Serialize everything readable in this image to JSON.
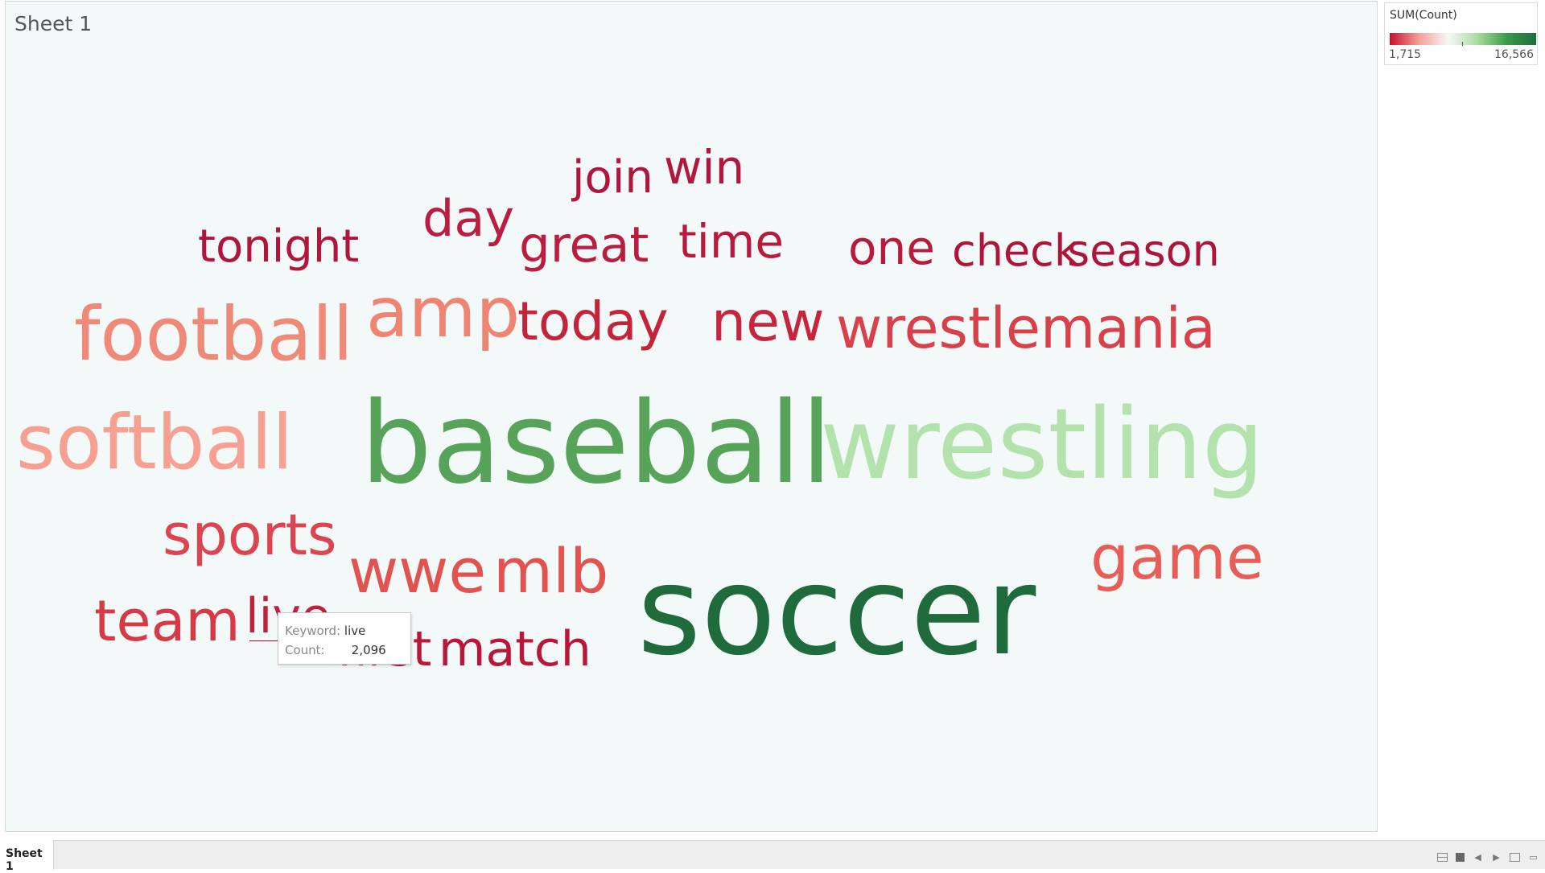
{
  "sheet": {
    "title": "Sheet 1",
    "tab_label": "Sheet 1"
  },
  "legend": {
    "title": "SUM(Count)",
    "min_label": "1,715",
    "max_label": "16,566",
    "colors": [
      "#c8102e",
      "#f3a09a",
      "#f7f7f7",
      "#a8dca0",
      "#3a9a4a",
      "#1e6e3e"
    ]
  },
  "tooltip": {
    "keyword_label": "Keyword:",
    "keyword_value": "live",
    "count_label": "Count:",
    "count_value": "2,096"
  },
  "chart_data": {
    "type": "word cloud",
    "title": "Sheet 1",
    "color_measure": "SUM(Count)",
    "color_range": [
      1715,
      16566
    ],
    "words": [
      {
        "text": "soccer",
        "count": 16566,
        "color": "#1f6b3b"
      },
      {
        "text": "baseball",
        "count": 12500,
        "color": "#57a359"
      },
      {
        "text": "wrestling",
        "count": 9500,
        "color": "#b3e2ac"
      },
      {
        "text": "softball",
        "count": 5600,
        "color": "#f6a091"
      },
      {
        "text": "football",
        "count": 5300,
        "color": "#f08a78"
      },
      {
        "text": "amp",
        "count": 4800,
        "color": "#ef8473"
      },
      {
        "text": "game",
        "count": 4200,
        "color": "#e65e57"
      },
      {
        "text": "wwe",
        "count": 4000,
        "color": "#e2534f"
      },
      {
        "text": "mlb",
        "count": 3950,
        "color": "#e2534f"
      },
      {
        "text": "wrestlemania",
        "count": 3300,
        "color": "#d8414a"
      },
      {
        "text": "sports",
        "count": 3200,
        "color": "#db4450"
      },
      {
        "text": "team",
        "count": 3000,
        "color": "#d63a46"
      },
      {
        "text": "new",
        "count": 2700,
        "color": "#c8243d"
      },
      {
        "text": "today",
        "count": 2600,
        "color": "#c52339"
      },
      {
        "text": "match",
        "count": 2300,
        "color": "#b8173a"
      },
      {
        "text": "first",
        "count": 2250,
        "color": "#b8173a"
      },
      {
        "text": "live",
        "count": 2096,
        "color": "#c11f3d"
      },
      {
        "text": "day",
        "count": 2050,
        "color": "#bc1c40"
      },
      {
        "text": "great",
        "count": 2000,
        "color": "#bc1c40"
      },
      {
        "text": "time",
        "count": 1950,
        "color": "#b81a3e"
      },
      {
        "text": "one",
        "count": 1900,
        "color": "#b81a3e"
      },
      {
        "text": "win",
        "count": 1880,
        "color": "#b4173d"
      },
      {
        "text": "tonight",
        "count": 1800,
        "color": "#b0163c"
      },
      {
        "text": "join",
        "count": 1780,
        "color": "#b0163c"
      },
      {
        "text": "check",
        "count": 1750,
        "color": "#ad153b"
      },
      {
        "text": "season",
        "count": 1715,
        "color": "#ad153b"
      }
    ]
  }
}
